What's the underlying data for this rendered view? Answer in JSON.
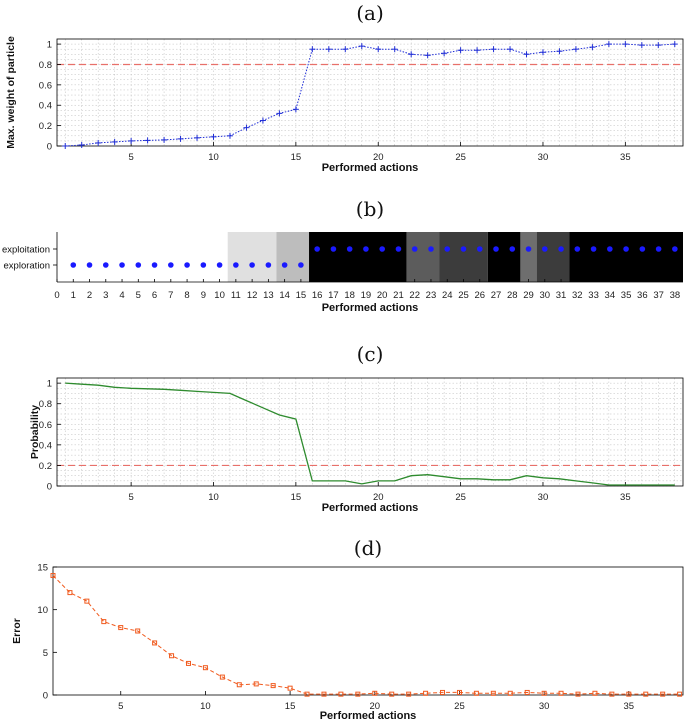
{
  "chart_data": [
    {
      "letter": "(a)",
      "type": "line",
      "xlabel": "Performed actions",
      "ylabel": "Max. weight of particle",
      "xlim": [
        0.5,
        38.5
      ],
      "ylim": [
        0,
        1.05
      ],
      "xticks": [
        5,
        10,
        15,
        20,
        25,
        30,
        35
      ],
      "yticks": [
        0,
        0.2,
        0.4,
        0.6,
        0.8,
        1
      ],
      "ytick_labels": [
        "0",
        "0.2",
        "0.4",
        "0.6",
        "0.8",
        "1"
      ],
      "grid": true,
      "colors": {
        "series": "#1f2dd6",
        "threshold": "#e8706a"
      },
      "threshold": 0.8,
      "series": [
        {
          "x": [
            1,
            2,
            3,
            4,
            5,
            6,
            7,
            8,
            9,
            10,
            11,
            12,
            13,
            14,
            15,
            16,
            17,
            18,
            19,
            20,
            21,
            22,
            23,
            24,
            25,
            26,
            27,
            28,
            29,
            30,
            31,
            32,
            33,
            34,
            35,
            36,
            37,
            38
          ],
          "values": [
            0.0,
            0.01,
            0.03,
            0.04,
            0.05,
            0.055,
            0.06,
            0.07,
            0.08,
            0.09,
            0.1,
            0.18,
            0.25,
            0.32,
            0.36,
            0.95,
            0.95,
            0.95,
            0.98,
            0.95,
            0.95,
            0.9,
            0.89,
            0.91,
            0.94,
            0.94,
            0.95,
            0.95,
            0.9,
            0.92,
            0.93,
            0.95,
            0.97,
            1.0,
            1.0,
            0.99,
            0.99,
            1.0
          ]
        }
      ]
    },
    {
      "letter": "(b)",
      "type": "scatter",
      "xlabel": "Performed actions",
      "categories": [
        "exploitation",
        "exploration"
      ],
      "xlim": [
        0,
        38.5
      ],
      "xticks": [
        0,
        1,
        2,
        3,
        4,
        5,
        6,
        7,
        8,
        9,
        10,
        11,
        12,
        13,
        14,
        15,
        16,
        17,
        18,
        19,
        20,
        21,
        22,
        23,
        24,
        25,
        26,
        27,
        28,
        29,
        30,
        31,
        32,
        33,
        34,
        35,
        36,
        37,
        38
      ],
      "colors": {
        "dots": "#1a1aff"
      },
      "states": [
        "exploration",
        "exploration",
        "exploration",
        "exploration",
        "exploration",
        "exploration",
        "exploration",
        "exploration",
        "exploration",
        "exploration",
        "exploration",
        "exploration",
        "exploration",
        "exploration",
        "exploration",
        "exploitation",
        "exploitation",
        "exploitation",
        "exploitation",
        "exploitation",
        "exploitation",
        "exploitation",
        "exploitation",
        "exploitation",
        "exploitation",
        "exploitation",
        "exploitation",
        "exploitation",
        "exploitation",
        "exploitation",
        "exploitation",
        "exploitation",
        "exploitation",
        "exploitation",
        "exploitation",
        "exploitation",
        "exploitation",
        "exploitation"
      ],
      "background_bands": [
        {
          "from": 10.5,
          "to": 13.5,
          "color": "#e0e0e0"
        },
        {
          "from": 13.5,
          "to": 15.5,
          "color": "#bdbdbd"
        },
        {
          "from": 15.5,
          "to": 21.5,
          "color": "#000000"
        },
        {
          "from": 21.5,
          "to": 23.5,
          "color": "#5c5c5c"
        },
        {
          "from": 23.5,
          "to": 26.5,
          "color": "#3c3c3c"
        },
        {
          "from": 26.5,
          "to": 28.5,
          "color": "#000000"
        },
        {
          "from": 28.5,
          "to": 29.5,
          "color": "#6e6e6e"
        },
        {
          "from": 29.5,
          "to": 31.5,
          "color": "#3c3c3c"
        },
        {
          "from": 31.5,
          "to": 38.5,
          "color": "#000000"
        }
      ]
    },
    {
      "letter": "(c)",
      "type": "line",
      "xlabel": "Performed actions",
      "ylabel": "Probability",
      "xlim": [
        0.5,
        38.5
      ],
      "ylim": [
        0,
        1.05
      ],
      "xticks": [
        5,
        10,
        15,
        20,
        25,
        30,
        35
      ],
      "yticks": [
        0,
        0.2,
        0.4,
        0.6,
        0.8,
        1
      ],
      "ytick_labels": [
        "0",
        "0.2",
        "0.4",
        "0.6",
        "0.8",
        "1"
      ],
      "grid": true,
      "colors": {
        "series": "#2e8b2e",
        "threshold": "#e8706a"
      },
      "threshold": 0.2,
      "series": [
        {
          "x": [
            1,
            2,
            3,
            4,
            5,
            6,
            7,
            8,
            9,
            10,
            11,
            12,
            13,
            14,
            15,
            16,
            17,
            18,
            19,
            20,
            21,
            22,
            23,
            24,
            25,
            26,
            27,
            28,
            29,
            30,
            31,
            32,
            33,
            34,
            35,
            36,
            37,
            38
          ],
          "values": [
            1.0,
            0.99,
            0.98,
            0.96,
            0.95,
            0.945,
            0.94,
            0.93,
            0.92,
            0.91,
            0.9,
            0.83,
            0.76,
            0.69,
            0.65,
            0.05,
            0.05,
            0.05,
            0.02,
            0.05,
            0.05,
            0.1,
            0.11,
            0.09,
            0.07,
            0.07,
            0.06,
            0.06,
            0.1,
            0.08,
            0.07,
            0.05,
            0.03,
            0.01,
            0.01,
            0.01,
            0.01,
            0.01
          ]
        }
      ]
    },
    {
      "letter": "(d)",
      "type": "line",
      "xlabel": "Performed actions",
      "ylabel": "Error",
      "xlim": [
        1,
        38.2
      ],
      "ylim": [
        0,
        15
      ],
      "xticks": [
        5,
        10,
        15,
        20,
        25,
        30,
        35
      ],
      "yticks": [
        0,
        5,
        10,
        15
      ],
      "ytick_labels": [
        "0",
        "5",
        "10",
        "15"
      ],
      "grid": false,
      "colors": {
        "series": "#f05a1e"
      },
      "series": [
        {
          "x": [
            1,
            2,
            3,
            4,
            5,
            6,
            7,
            8,
            9,
            10,
            11,
            12,
            13,
            14,
            15,
            16,
            17,
            18,
            19,
            20,
            21,
            22,
            23,
            24,
            25,
            26,
            27,
            28,
            29,
            30,
            31,
            32,
            33,
            34,
            35,
            36,
            37,
            38
          ],
          "values": [
            14.0,
            12.0,
            11.0,
            8.6,
            7.9,
            7.5,
            6.1,
            4.6,
            3.7,
            3.2,
            2.1,
            1.2,
            1.3,
            1.1,
            0.8,
            0.1,
            0.1,
            0.1,
            0.1,
            0.2,
            0.1,
            0.1,
            0.2,
            0.3,
            0.3,
            0.2,
            0.2,
            0.2,
            0.3,
            0.2,
            0.2,
            0.1,
            0.2,
            0.1,
            0.1,
            0.1,
            0.1,
            0.1
          ]
        }
      ]
    }
  ]
}
